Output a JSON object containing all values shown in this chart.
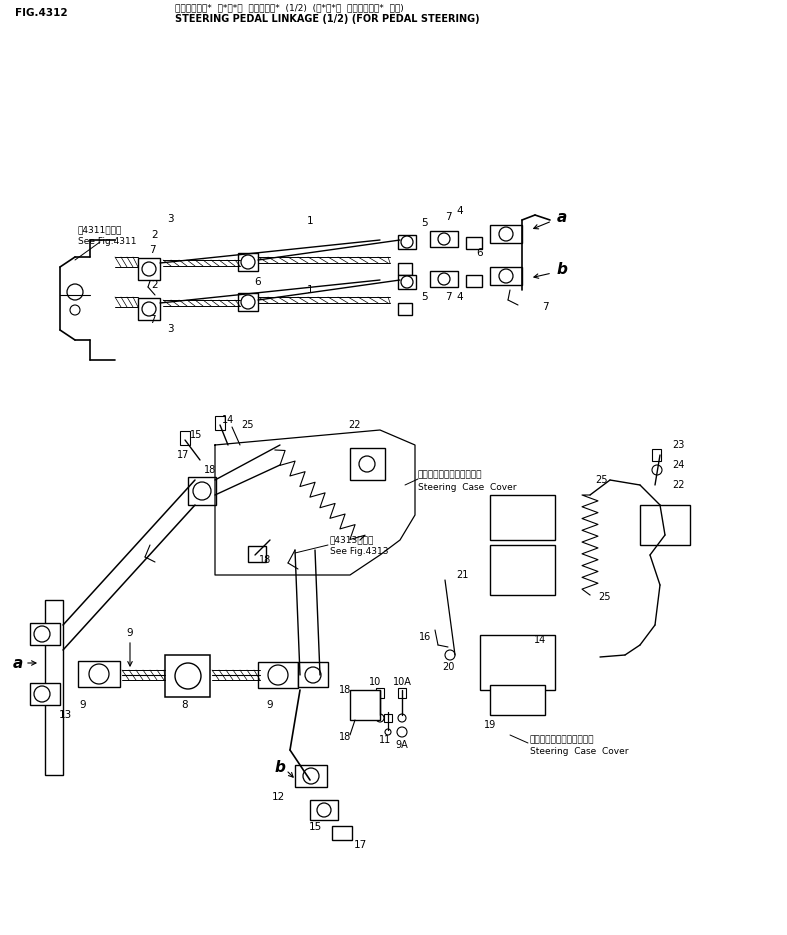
{
  "title_japanese": "ステアリング*  ペ*ダ*ル  リンケージ*  (1/2)  (ペ*ダ*ル  ステアリング*  ヨウ)",
  "title_english": "STEERING PEDAL LINKAGE (1/2) (FOR PEDAL STEERING)",
  "fig_number": "FIG.4312",
  "bg": "#ffffff",
  "lc": "#000000"
}
